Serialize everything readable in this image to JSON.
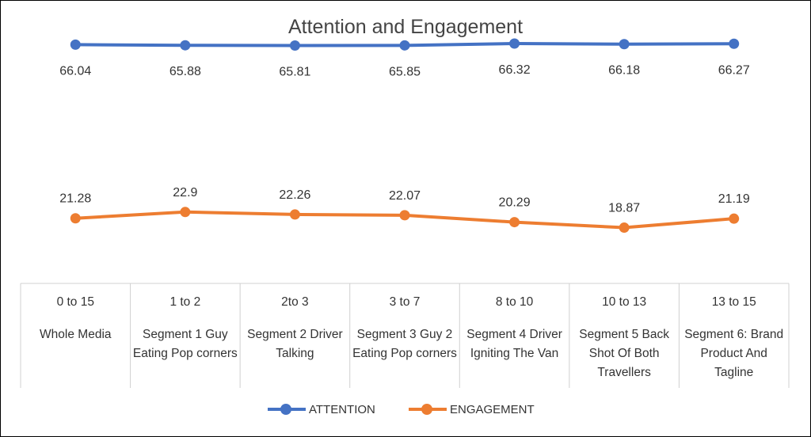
{
  "chart_data": {
    "type": "line",
    "title": "Attention and Engagement",
    "categories": [
      {
        "range": "0 to 15",
        "name": "Whole Media"
      },
      {
        "range": "1 to 2",
        "name": "Segment 1 Guy Eating Pop corners"
      },
      {
        "range": "2to 3",
        "name": "Segment 2 Driver Talking"
      },
      {
        "range": "3 to 7",
        "name": "Segment 3  Guy 2 Eating Pop corners"
      },
      {
        "range": "8 to 10",
        "name": "Segment 4 Driver Igniting The Van"
      },
      {
        "range": "10 to 13",
        "name": "Segment 5  Back Shot Of Both Travellers"
      },
      {
        "range": "13 to 15",
        "name": "Segment 6: Brand Product And Tagline"
      }
    ],
    "series": [
      {
        "name": "ATTENTION",
        "color": "#4472C4",
        "values": [
          66.04,
          65.88,
          65.81,
          65.85,
          66.32,
          66.18,
          66.27
        ],
        "label_position": "below"
      },
      {
        "name": "ENGAGEMENT",
        "color": "#ED7D31",
        "values": [
          21.28,
          22.9,
          22.26,
          22.07,
          20.29,
          18.87,
          21.19
        ],
        "label_position": "above"
      }
    ],
    "legend_position": "bottom",
    "grid": false
  }
}
